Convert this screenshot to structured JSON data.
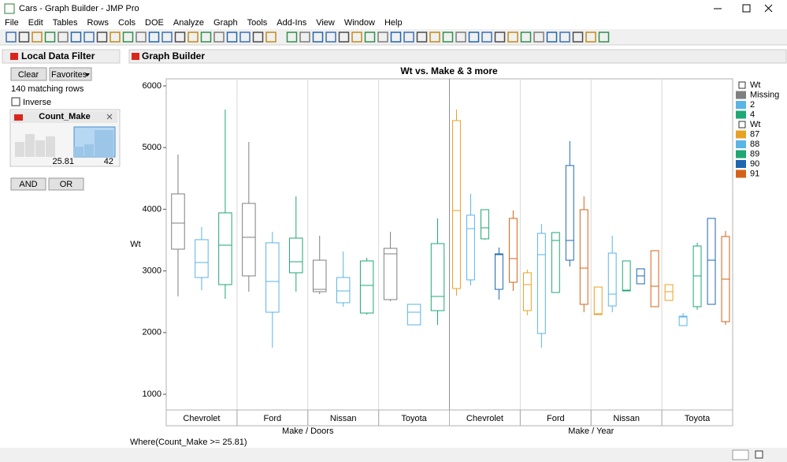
{
  "window": {
    "title": "Cars - Graph Builder - JMP Pro"
  },
  "menu": [
    "File",
    "Edit",
    "Tables",
    "Rows",
    "Cols",
    "DOE",
    "Analyze",
    "Graph",
    "Tools",
    "Add-Ins",
    "View",
    "Window",
    "Help"
  ],
  "filter": {
    "title": "Local Data Filter",
    "clear": "Clear",
    "favorites": "Favorites",
    "matching": "140 matching rows",
    "inverse": "Inverse",
    "column": "Count_Make",
    "low": 25.81,
    "high": 42,
    "and": "AND",
    "or": "OR"
  },
  "graph_builder": {
    "title": "Graph Builder",
    "where": "Where(Count_Make >= 25.81)"
  },
  "chart_data": {
    "type": "box",
    "title": "Wt vs. Make & 3 more",
    "y_label": "Wt",
    "ylim": [
      745,
      6115
    ],
    "yticks": [
      1000,
      2000,
      3000,
      4000,
      5000,
      6000
    ],
    "panels": [
      {
        "x_label": "Make / Doors",
        "legend_title": "Wt",
        "categories": [
          "Chevrolet",
          "Ford",
          "Nissan",
          "Toyota"
        ],
        "series": [
          {
            "name": "Missing",
            "color": "#7f7f7f",
            "values": [
              [
                2586,
                3353,
                3775,
                4249,
                4888
              ],
              [
                2663,
                2919,
                3545,
                4095,
                5093
              ],
              [
                2624,
                2663,
                2701,
                3174,
                3571
              ],
              [
                2509,
                2535,
                3277,
                3366,
                3635
              ]
            ]
          },
          {
            "name": "2",
            "color": "#5ab4e5",
            "values": [
              [
                2688,
                2893,
                3136,
                3507,
                3712
              ],
              [
                1755,
                2330,
                2829,
                3456,
                3635
              ],
              [
                2420,
                2484,
                2676,
                2893,
                3315
              ],
              [
                2126,
                2126,
                2330,
                2458,
                2458
              ]
            ]
          },
          {
            "name": "4",
            "color": "#1fa774",
            "values": [
              [
                2548,
                2778,
                3417,
                3942,
                5617
              ],
              [
                2663,
                2970,
                3149,
                3532,
                4210
              ],
              [
                2292,
                2317,
                2765,
                3162,
                3213
              ],
              [
                2126,
                2356,
                2586,
                3443,
                3852
              ]
            ]
          }
        ]
      },
      {
        "x_label": "Make / Year",
        "legend_title": "Wt",
        "categories": [
          "Chevrolet",
          "Ford",
          "Nissan",
          "Toyota"
        ],
        "series": [
          {
            "name": "87",
            "color": "#e8a123",
            "values": [
              [
                2599,
                2714,
                3980,
                5438,
                5617
              ],
              [
                2279,
                2356,
                2778,
                2970,
                3021
              ],
              [
                2292,
                2292,
                2305,
                2739,
                2739
              ],
              [
                2522,
                2522,
                2663,
                2778,
                2778
              ]
            ]
          },
          {
            "name": "88",
            "color": "#5ab4e5",
            "values": [
              [
                2765,
                2855,
                3686,
                3904,
                4249
              ],
              [
                1755,
                1985,
                3264,
                3609,
                3763
              ],
              [
                2330,
                2432,
                2624,
                3289,
                3571
              ],
              [
                2113,
                2113,
                2253,
                2266,
                2317
              ]
            ]
          },
          {
            "name": "89",
            "color": "#1fa774",
            "values": [
              [
                3507,
                3520,
                3699,
                3993,
                3993
              ],
              [
                2650,
                2650,
                3494,
                3622,
                3622
              ],
              [
                2676,
                2676,
                2688,
                3162,
                3162
              ],
              [
                2368,
                2420,
                2919,
                3404,
                3456
              ]
            ]
          },
          {
            "name": "90",
            "color": "#1f66b0",
            "values": [
              [
                2535,
                2701,
                3264,
                3277,
                3379
              ],
              [
                3072,
                3174,
                3494,
                4709,
                5106
              ],
              [
                2791,
                2791,
                2919,
                3034,
                3034
              ],
              [
                2458,
                2458,
                3174,
                3852,
                3852
              ]
            ]
          },
          {
            "name": "91",
            "color": "#d4621a",
            "values": [
              [
                2676,
                2816,
                3200,
                3852,
                3980
              ],
              [
                2330,
                2458,
                3046,
                3993,
                4210
              ],
              [
                2420,
                2420,
                2752,
                3328,
                3328
              ],
              [
                2126,
                2177,
                2867,
                3558,
                3648
              ]
            ]
          }
        ]
      }
    ]
  }
}
